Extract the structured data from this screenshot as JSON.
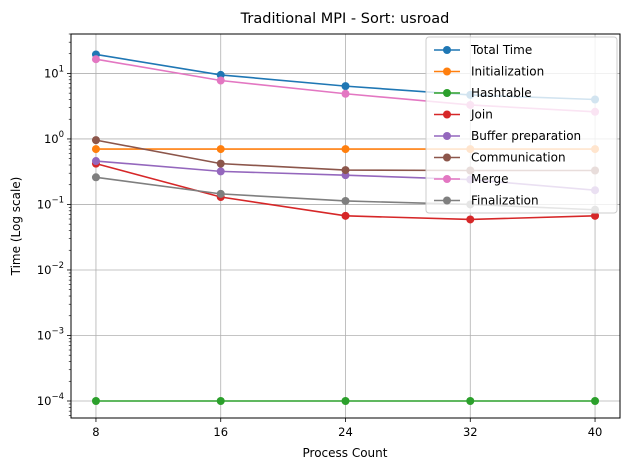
{
  "chart_data": {
    "type": "line",
    "title": "Traditional MPI - Sort: usroad",
    "xlabel": "Process Count",
    "ylabel": "Time (Log scale)",
    "y_scale": "log",
    "grid": true,
    "legend_position": "top-right",
    "x": [
      8,
      16,
      24,
      32,
      40
    ],
    "x_ticks": [
      "8",
      "16",
      "24",
      "32",
      "40"
    ],
    "y_ticks": [
      {
        "base": "10",
        "exp": "−4",
        "value": 0.0001
      },
      {
        "base": "10",
        "exp": "−3",
        "value": 0.001
      },
      {
        "base": "10",
        "exp": "−2",
        "value": 0.01
      },
      {
        "base": "10",
        "exp": "−1",
        "value": 0.1
      },
      {
        "base": "10",
        "exp": "0",
        "value": 1
      },
      {
        "base": "10",
        "exp": "1",
        "value": 10
      }
    ],
    "series": [
      {
        "name": "Total Time",
        "color": "#1f77b4",
        "values": [
          19.5,
          9.5,
          6.4,
          4.7,
          4.0
        ]
      },
      {
        "name": "Initialization",
        "color": "#ff7f0e",
        "values": [
          0.7,
          0.7,
          0.7,
          0.7,
          0.7
        ]
      },
      {
        "name": "Hashtable",
        "color": "#2ca02c",
        "values": [
          0.0001,
          0.0001,
          0.0001,
          0.0001,
          0.0001
        ]
      },
      {
        "name": "Join",
        "color": "#d62728",
        "values": [
          0.42,
          0.13,
          0.067,
          0.059,
          0.067
        ]
      },
      {
        "name": "Buffer preparation",
        "color": "#9467bd",
        "values": [
          0.46,
          0.32,
          0.28,
          0.24,
          0.165
        ]
      },
      {
        "name": "Communication",
        "color": "#8c564b",
        "values": [
          0.96,
          0.42,
          0.335,
          0.33,
          0.33
        ]
      },
      {
        "name": "Merge",
        "color": "#e377c2",
        "values": [
          16.5,
          7.8,
          4.9,
          3.3,
          2.6
        ]
      },
      {
        "name": "Finalization",
        "color": "#7f7f7f",
        "values": [
          0.26,
          0.145,
          0.113,
          0.1,
          0.083
        ]
      }
    ]
  }
}
